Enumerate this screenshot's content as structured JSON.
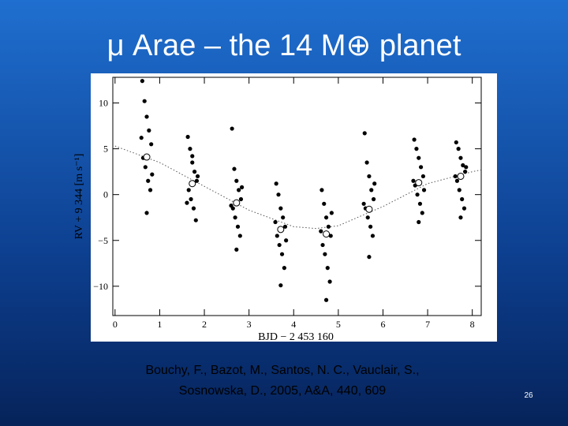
{
  "chart_data": {
    "type": "scatter",
    "title": "μ Arae – the 14 M⊕ planet",
    "x_label": "BJD − 2 453 160",
    "y_label": "RV + 9 344 [m s⁻¹]",
    "xlim": [
      -0.05,
      8.2
    ],
    "ylim": [
      -13.2,
      12.8
    ],
    "xticks": [
      0,
      1,
      2,
      3,
      4,
      5,
      6,
      7,
      8
    ],
    "yticks": [
      {
        "value": -10,
        "label": "−10"
      },
      {
        "value": -5,
        "label": "−5"
      },
      0,
      5,
      10
    ],
    "series": [
      {
        "kind": "points",
        "color": "#000000",
        "x": [
          0.61,
          0.66,
          0.71,
          0.76,
          0.81,
          0.63,
          0.68,
          0.74,
          0.79,
          0.71,
          0.59,
          0.83,
          1.63,
          1.68,
          1.73,
          1.78,
          1.83,
          1.65,
          1.7,
          1.76,
          1.81,
          1.73,
          1.61,
          1.85,
          2.62,
          2.67,
          2.72,
          2.77,
          2.82,
          2.64,
          2.69,
          2.75,
          2.8,
          2.72,
          2.6,
          2.84,
          3.61,
          3.66,
          3.71,
          3.76,
          3.81,
          3.63,
          3.68,
          3.74,
          3.79,
          3.71,
          3.59,
          3.83,
          4.63,
          4.68,
          4.73,
          4.78,
          4.83,
          4.65,
          4.7,
          4.76,
          4.81,
          4.73,
          4.61,
          4.85,
          5.59,
          5.64,
          5.69,
          5.74,
          5.79,
          5.61,
          5.66,
          5.72,
          5.77,
          5.69,
          5.57,
          5.81,
          6.7,
          6.75,
          6.8,
          6.85,
          6.9,
          6.72,
          6.77,
          6.83,
          6.88,
          6.8,
          6.68,
          6.92,
          7.64,
          7.69,
          7.74,
          7.79,
          7.84,
          7.66,
          7.71,
          7.77,
          7.82,
          7.74,
          7.62,
          7.86
        ],
        "y": [
          12.4,
          10.2,
          8.5,
          7.0,
          5.5,
          4.0,
          3.0,
          1.5,
          0.5,
          -2.0,
          6.2,
          2.2,
          6.3,
          5.0,
          3.5,
          2.5,
          1.5,
          0.5,
          -0.5,
          -1.5,
          -2.8,
          4.2,
          -0.9,
          2.0,
          7.2,
          2.8,
          1.5,
          0.5,
          -0.5,
          -1.5,
          -2.5,
          -3.5,
          -4.5,
          -6.0,
          -1.2,
          0.8,
          1.2,
          0,
          -1.5,
          -2.5,
          -3.5,
          -4.5,
          -5.5,
          -6.5,
          -8.0,
          -9.9,
          -3.0,
          -5.0,
          0.5,
          -1.0,
          -2.5,
          -3.5,
          -4.5,
          -5.5,
          -6.5,
          -8.0,
          -9.5,
          -11.5,
          -4.0,
          -2.0,
          6.7,
          3.5,
          2.0,
          0.5,
          -0.5,
          -1.5,
          -2.5,
          -3.5,
          -4.5,
          -6.8,
          -1.0,
          1.2,
          6.0,
          5.0,
          4.0,
          3.0,
          2.0,
          1.0,
          0,
          -1.0,
          -2.0,
          -3.0,
          1.5,
          0.5,
          5.7,
          5.0,
          4.0,
          3.2,
          2.5,
          1.5,
          0.5,
          -0.5,
          -1.5,
          -2.5,
          2.0,
          3.0
        ]
      },
      {
        "kind": "line",
        "color": "#555555",
        "x": [
          0,
          1,
          2,
          3,
          4,
          4.5,
          5,
          6,
          7,
          8,
          8.2
        ],
        "y": [
          5.3,
          3.5,
          0.9,
          -1.7,
          -3.5,
          -3.7,
          -3.4,
          -1.3,
          1.2,
          2.5,
          2.7
        ]
      },
      {
        "kind": "means",
        "color": "#ffffff",
        "x": [
          0.71,
          1.73,
          2.72,
          3.71,
          4.73,
          5.69,
          6.8,
          7.74
        ],
        "y": [
          4.1,
          1.2,
          -0.9,
          -3.8,
          -4.3,
          -1.6,
          1.3,
          2.0
        ]
      }
    ]
  },
  "citation": [
    "Bouchy, F., Bazot, M., Santos, N. C., Vauclair, S.,",
    "Sosnowska, D., 2005, A&A, 440, 609"
  ],
  "page_number": "26"
}
